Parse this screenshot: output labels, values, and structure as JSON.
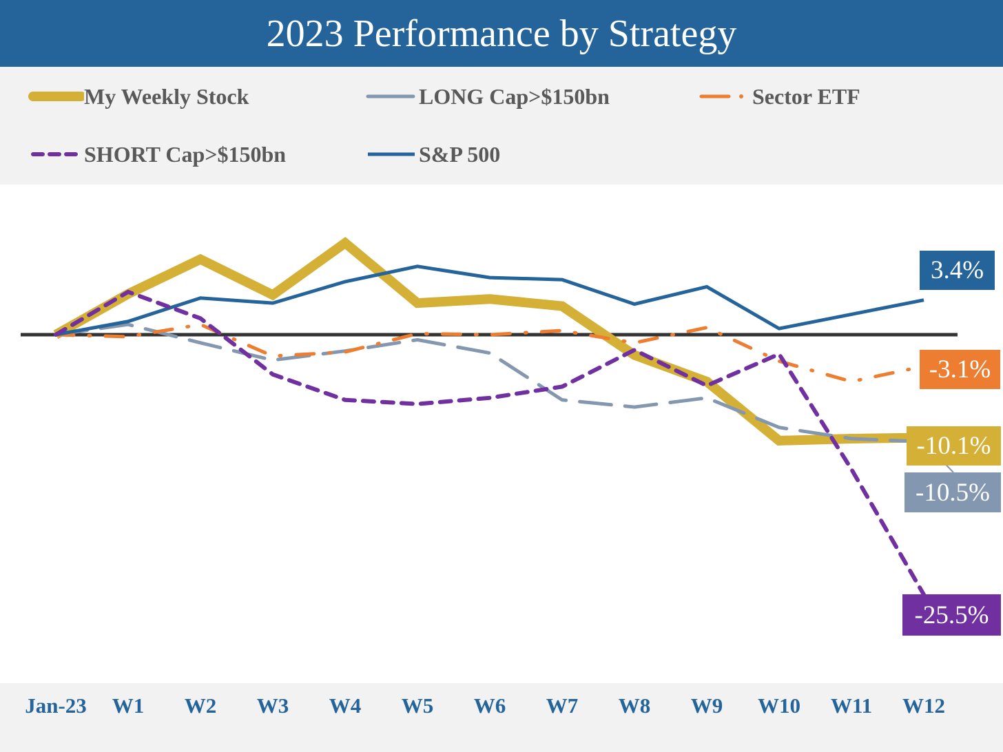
{
  "chart_data": {
    "type": "line",
    "title": "2023 Performance by Strategy",
    "categories": [
      "Jan-23",
      "W1",
      "W2",
      "W3",
      "W4",
      "W5",
      "W6",
      "W7",
      "W8",
      "W9",
      "W10",
      "W11",
      "W12"
    ],
    "ylim": [
      -28,
      10
    ],
    "grid": false,
    "legend_position": "top",
    "series": [
      {
        "key": "short",
        "name": "SHORT Cap>$150bn",
        "color": "#7030a0",
        "style": "dashed",
        "values": [
          0,
          4.2,
          1.6,
          -3.9,
          -6.4,
          -6.8,
          -6.2,
          -5.1,
          -1.5,
          -5.0,
          -1.9,
          -13.2,
          -25.5
        ],
        "end_label": "-25.5%"
      },
      {
        "key": "sp500",
        "name": "S&P 500",
        "color": "#24649a",
        "style": "solid",
        "values": [
          0,
          1.3,
          3.6,
          3.1,
          5.2,
          6.7,
          5.6,
          5.4,
          3.0,
          4.7,
          0.6,
          2.0,
          3.4
        ],
        "end_label": "3.4%"
      },
      {
        "key": "sector",
        "name": "Sector ETF",
        "color": "#ed7d31",
        "style": "dash-dot",
        "values": [
          0,
          -0.2,
          1.0,
          -2.1,
          -1.7,
          0.1,
          0.0,
          0.4,
          -0.8,
          0.7,
          -2.6,
          -4.6,
          -3.1
        ],
        "end_label": "-3.1%"
      },
      {
        "key": "long",
        "name": "LONG Cap>$150bn",
        "color": "#8497b0",
        "style": "long-dash",
        "values": [
          0,
          1.0,
          -0.8,
          -2.5,
          -1.6,
          -0.5,
          -1.8,
          -6.4,
          -7.1,
          -6.2,
          -9.1,
          -10.2,
          -10.5
        ],
        "end_label": "-10.5%"
      },
      {
        "key": "weekly",
        "name": "My Weekly Stock",
        "color": "#d4b036",
        "style": "thick",
        "values": [
          0,
          4.0,
          7.4,
          3.9,
          9.0,
          3.1,
          3.5,
          2.8,
          -2.0,
          -4.6,
          -10.4,
          -10.2,
          -10.1
        ],
        "end_label": "-10.1%"
      }
    ]
  },
  "legend": {
    "row1": [
      "My Weekly Stock",
      "LONG Cap>$150bn",
      "Sector ETF"
    ],
    "row2": [
      "SHORT Cap>$150bn",
      "S&P 500"
    ]
  }
}
